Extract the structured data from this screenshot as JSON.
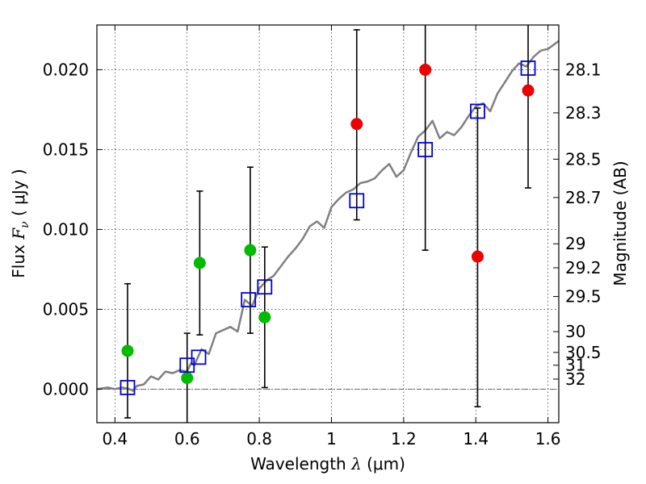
{
  "chart_data": {
    "type": "scatter",
    "xlabel": {
      "pre": "Wavelength  ",
      "symbol": "λ",
      "unit": " (μm)"
    },
    "ylabel": {
      "pre": "Flux  ",
      "symbol": "F",
      "sub": "ν",
      "unit": "  ( μJy )"
    },
    "y2label": "Magnitude (AB)",
    "xlim": [
      0.35,
      1.63
    ],
    "ylim": [
      -0.0021,
      0.0228
    ],
    "xticks": [
      0.4,
      0.6,
      0.8,
      1.0,
      1.2,
      1.4,
      1.6
    ],
    "xtick_labels": [
      "0.4",
      "0.6",
      "0.8",
      "1",
      "1.2",
      "1.4",
      "1.6"
    ],
    "yticks": [
      0.0,
      0.005,
      0.01,
      0.015,
      0.02
    ],
    "ytick_labels": [
      "0.000",
      "0.005",
      "0.010",
      "0.015",
      "0.020"
    ],
    "mag_ticks": [
      {
        "label": "28.1",
        "flux": 0.02
      },
      {
        "label": "28.3",
        "flux": 0.0173
      },
      {
        "label": "28.5",
        "flux": 0.0144
      },
      {
        "label": "28.7",
        "flux": 0.012
      },
      {
        "label": "29",
        "flux": 0.0091
      },
      {
        "label": "29.2",
        "flux": 0.0076
      },
      {
        "label": "29.5",
        "flux": 0.0058
      },
      {
        "label": "30",
        "flux": 0.0036
      },
      {
        "label": "30.5",
        "flux": 0.0023
      },
      {
        "label": "31",
        "flux": 0.0015
      },
      {
        "label": "32",
        "flux": 0.00063
      }
    ],
    "grid": true,
    "colors": {
      "model": "#808080",
      "green": "#00bb00",
      "red": "#ee0000",
      "square": "#0000dd",
      "error": "#000000"
    },
    "model_spectrum": {
      "x": [
        0.35,
        0.38,
        0.4,
        0.42,
        0.44,
        0.45,
        0.46,
        0.48,
        0.5,
        0.52,
        0.54,
        0.56,
        0.58,
        0.6,
        0.61,
        0.62,
        0.64,
        0.66,
        0.68,
        0.7,
        0.72,
        0.74,
        0.76,
        0.78,
        0.8,
        0.82,
        0.84,
        0.86,
        0.88,
        0.9,
        0.92,
        0.94,
        0.96,
        0.98,
        1.0,
        1.02,
        1.04,
        1.06,
        1.08,
        1.1,
        1.12,
        1.14,
        1.16,
        1.18,
        1.2,
        1.22,
        1.24,
        1.26,
        1.28,
        1.3,
        1.32,
        1.34,
        1.36,
        1.38,
        1.4,
        1.42,
        1.44,
        1.46,
        1.48,
        1.5,
        1.52,
        1.54,
        1.56,
        1.58,
        1.6,
        1.63
      ],
      "y": [
        0.0,
        0.0001,
        0.0,
        0.0001,
        0.0,
        -0.0001,
        0.0002,
        0.0003,
        0.0008,
        0.0006,
        0.0011,
        0.001,
        0.0012,
        0.0011,
        0.0016,
        0.0015,
        0.0025,
        0.0022,
        0.0035,
        0.0037,
        0.0039,
        0.0036,
        0.0056,
        0.0052,
        0.0063,
        0.0068,
        0.0071,
        0.0077,
        0.0083,
        0.0088,
        0.0094,
        0.0102,
        0.0105,
        0.0101,
        0.0114,
        0.0119,
        0.0123,
        0.0125,
        0.0129,
        0.013,
        0.0132,
        0.0137,
        0.0141,
        0.0133,
        0.0137,
        0.0148,
        0.0158,
        0.0162,
        0.0168,
        0.0157,
        0.0161,
        0.0159,
        0.0164,
        0.0171,
        0.0177,
        0.0179,
        0.0174,
        0.0185,
        0.0192,
        0.0199,
        0.0204,
        0.0202,
        0.0208,
        0.0212,
        0.0213,
        0.0218
      ]
    },
    "model_squares": [
      {
        "x": 0.435,
        "y": 0.0001
      },
      {
        "x": 0.6,
        "y": 0.0015
      },
      {
        "x": 0.632,
        "y": 0.002
      },
      {
        "x": 0.77,
        "y": 0.0056
      },
      {
        "x": 0.815,
        "y": 0.0064
      },
      {
        "x": 1.07,
        "y": 0.0118
      },
      {
        "x": 1.26,
        "y": 0.015
      },
      {
        "x": 1.405,
        "y": 0.0174
      },
      {
        "x": 1.545,
        "y": 0.0201
      }
    ],
    "green_points": [
      {
        "x": 0.435,
        "y": 0.0024,
        "lo": -0.0018,
        "hi": 0.0066
      },
      {
        "x": 0.6,
        "y": 0.0007,
        "lo": -0.0021,
        "hi": 0.0035
      },
      {
        "x": 0.635,
        "y": 0.0079,
        "lo": 0.0034,
        "hi": 0.0124
      },
      {
        "x": 0.775,
        "y": 0.0087,
        "lo": 0.0035,
        "hi": 0.0139
      },
      {
        "x": 0.815,
        "y": 0.0045,
        "lo": 0.0001,
        "hi": 0.0089
      }
    ],
    "red_points": [
      {
        "x": 1.07,
        "y": 0.0166,
        "lo": 0.0106,
        "hi": 0.0225
      },
      {
        "x": 1.26,
        "y": 0.02,
        "lo": 0.0087,
        "hi": 0.0228
      },
      {
        "x": 1.405,
        "y": 0.0083,
        "lo": -0.0011,
        "hi": 0.0176
      },
      {
        "x": 1.545,
        "y": 0.0187,
        "lo": 0.0126,
        "hi": 0.0228
      }
    ]
  }
}
